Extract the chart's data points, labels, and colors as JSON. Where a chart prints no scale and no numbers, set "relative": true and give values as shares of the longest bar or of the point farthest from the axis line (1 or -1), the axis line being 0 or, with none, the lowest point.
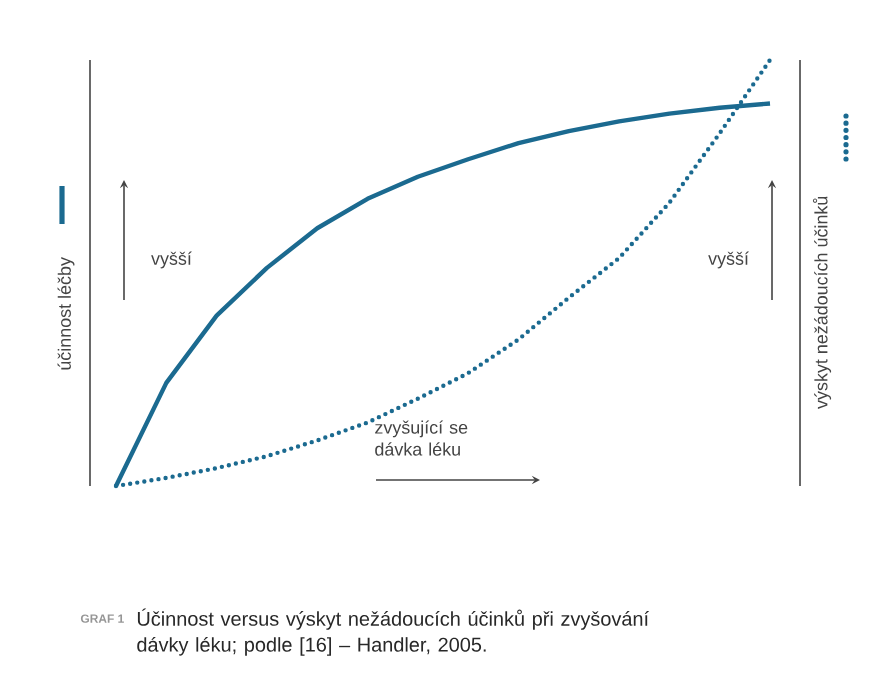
{
  "chart_data": {
    "type": "line",
    "relative": true,
    "ylabel": "účinnost léčby",
    "y2label": "výskyt nežádoucích účinků",
    "categories": [
      null,
      null,
      null,
      null,
      null,
      null,
      null,
      null,
      null,
      null,
      null,
      null,
      null,
      null
    ],
    "series": [
      {
        "color": "#1b6a90",
        "line_style": "solid",
        "values": [
          0,
          0.242,
          0.4,
          0.512,
          0.605,
          0.674,
          0.726,
          0.767,
          0.805,
          0.833,
          0.856,
          0.874,
          0.888,
          0.898
        ]
      },
      {
        "color": "#1b6a90",
        "line_style": "dotted",
        "values": [
          0,
          0.019,
          0.042,
          0.07,
          0.107,
          0.149,
          0.205,
          0.265,
          0.344,
          0.442,
          0.535,
          0.665,
          0.828,
          1
        ]
      }
    ],
    "annotations": [
      "vyšší",
      "vyšší",
      "zvyšující se dávka léku",
      "GRAF 1",
      "Účinnost versus výskyt nežádoucích účinků při zvyšování dávky léku; podle [16] – Handler, 2005."
    ],
    "marker": "none"
  }
}
